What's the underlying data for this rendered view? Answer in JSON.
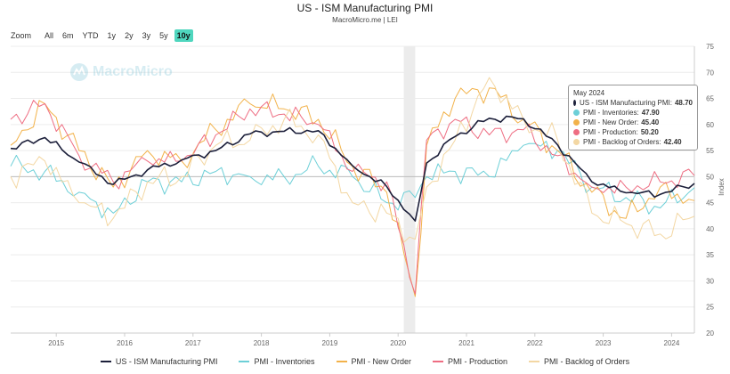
{
  "header": {
    "title": "US - ISM Manufacturing PMI",
    "subtitle": "MacroMicro.me | LEI"
  },
  "zoom": {
    "label": "Zoom",
    "options": [
      "All",
      "6m",
      "YTD",
      "1y",
      "2y",
      "3y",
      "5y",
      "10y"
    ],
    "active": "10y"
  },
  "watermark": {
    "text": "MacroMicro",
    "icon": "macromicro-logo-icon"
  },
  "tooltip": {
    "date": "May 2024",
    "rows": [
      {
        "label": "US - ISM Manufacturing PMI:",
        "value": "48.70",
        "color": "#1c1f3a"
      },
      {
        "label": "PMI - Inventories:",
        "value": "47.90",
        "color": "#6ccfd7"
      },
      {
        "label": "PMI - New Order:",
        "value": "45.40",
        "color": "#f2b24a"
      },
      {
        "label": "PMI - Production:",
        "value": "50.20",
        "color": "#ee6d82"
      },
      {
        "label": "PMI - Backlog of Orders:",
        "value": "42.40",
        "color": "#f3d7a3"
      }
    ]
  },
  "chart_data": {
    "type": "line",
    "ylabel": "Index",
    "ylim": [
      20,
      75
    ],
    "y_ticks": [
      20,
      25,
      30,
      35,
      40,
      45,
      50,
      55,
      60,
      65,
      70,
      75
    ],
    "x_range": [
      "2014-05",
      "2024-05"
    ],
    "x_ticks": [
      "2015",
      "2016",
      "2017",
      "2018",
      "2019",
      "2020",
      "2021",
      "2022",
      "2023",
      "2024"
    ],
    "reference_line": 50,
    "shaded_period": [
      "2020-02",
      "2020-04"
    ],
    "grid": "horizontal",
    "legend_position": "bottom",
    "anchor_months": [
      "2014-05",
      "2014-11",
      "2015-05",
      "2015-11",
      "2016-05",
      "2016-11",
      "2017-05",
      "2017-11",
      "2018-05",
      "2018-11",
      "2019-05",
      "2019-11",
      "2020-04",
      "2020-06",
      "2020-11",
      "2021-05",
      "2021-11",
      "2022-05",
      "2022-11",
      "2023-05",
      "2023-11",
      "2024-05"
    ],
    "series": [
      {
        "name": "US - ISM Manufacturing PMI",
        "color": "#1c1f3a",
        "width": 1.6,
        "values": [
          55.4,
          57.5,
          52.8,
          48.5,
          51.3,
          53.2,
          55.0,
          58.2,
          58.7,
          58.8,
          52.1,
          48.1,
          41.5,
          52.6,
          57.7,
          61.2,
          61.1,
          56.1,
          49.0,
          46.9,
          46.6,
          48.7
        ]
      },
      {
        "name": "PMI - Inventories",
        "color": "#6ccfd7",
        "width": 1.0,
        "values": [
          52.0,
          51.0,
          47.0,
          43.0,
          49.0,
          49.0,
          51.0,
          50.0,
          50.0,
          52.0,
          50.0,
          45.0,
          46.0,
          50.0,
          51.0,
          50.0,
          56.0,
          55.0,
          48.0,
          46.0,
          44.0,
          47.9
        ]
      },
      {
        "name": "PMI - New Order",
        "color": "#f2b24a",
        "width": 1.0,
        "values": [
          56.0,
          64.0,
          55.0,
          48.0,
          55.0,
          53.0,
          59.0,
          64.0,
          63.0,
          61.0,
          52.0,
          47.0,
          27.0,
          56.0,
          65.0,
          67.0,
          61.0,
          55.0,
          47.0,
          42.0,
          48.0,
          45.4
        ]
      },
      {
        "name": "PMI - Production",
        "color": "#ee6d82",
        "width": 1.0,
        "values": [
          61.0,
          64.0,
          54.0,
          49.0,
          53.0,
          53.0,
          58.0,
          63.0,
          62.0,
          60.0,
          51.0,
          49.0,
          27.5,
          57.0,
          61.0,
          58.0,
          59.0,
          54.0,
          48.0,
          48.0,
          49.0,
          50.2
        ]
      },
      {
        "name": "PMI - Backlog of Orders",
        "color": "#f3d7a3",
        "width": 1.0,
        "values": [
          50.0,
          53.0,
          45.0,
          42.0,
          49.0,
          50.0,
          56.0,
          57.0,
          61.0,
          58.0,
          45.0,
          43.0,
          38.0,
          48.0,
          57.0,
          69.0,
          61.0,
          57.0,
          43.0,
          41.0,
          39.0,
          42.4
        ]
      }
    ]
  }
}
